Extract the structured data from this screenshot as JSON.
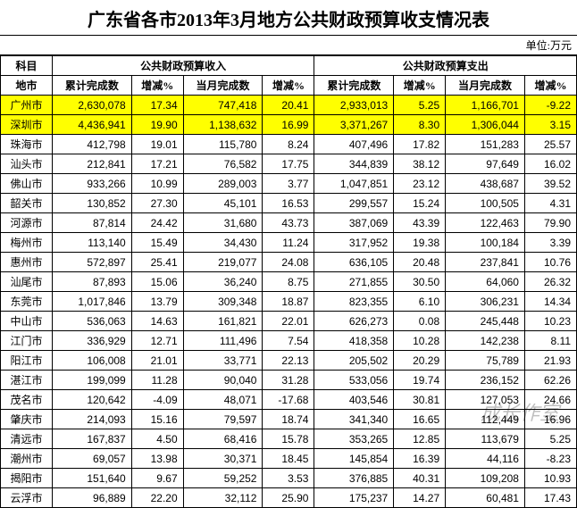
{
  "title": "广东省各市2013年3月地方公共财政预算收支情况表",
  "unit": "单位:万元",
  "headers": {
    "subject": "科目",
    "city": "地市",
    "income_group": "公共财政预算收入",
    "expense_group": "公共财政预算支出",
    "cum_total": "累计完成数",
    "pct1": "增减%",
    "month_total": "当月完成数",
    "pct2": "增减%",
    "cum_total2": "累计完成数",
    "pct3": "增减%",
    "month_total2": "当月完成数",
    "pct4": "增减%"
  },
  "highlight_color": "#ffff00",
  "rows": [
    {
      "city": "广州市",
      "hl": true,
      "v": [
        "2,630,078",
        "17.34",
        "747,418",
        "20.41",
        "2,933,013",
        "5.25",
        "1,166,701",
        "-9.22"
      ]
    },
    {
      "city": "深圳市",
      "hl": true,
      "v": [
        "4,436,941",
        "19.90",
        "1,138,632",
        "16.99",
        "3,371,267",
        "8.30",
        "1,306,044",
        "3.15"
      ]
    },
    {
      "city": "珠海市",
      "hl": false,
      "v": [
        "412,798",
        "19.01",
        "115,780",
        "8.24",
        "407,496",
        "17.82",
        "151,283",
        "25.57"
      ]
    },
    {
      "city": "汕头市",
      "hl": false,
      "v": [
        "212,841",
        "17.21",
        "76,582",
        "17.75",
        "344,839",
        "38.12",
        "97,649",
        "16.02"
      ]
    },
    {
      "city": "佛山市",
      "hl": false,
      "v": [
        "933,266",
        "10.99",
        "289,003",
        "3.77",
        "1,047,851",
        "23.12",
        "438,687",
        "39.52"
      ]
    },
    {
      "city": "韶关市",
      "hl": false,
      "v": [
        "130,852",
        "27.30",
        "45,101",
        "16.53",
        "299,557",
        "15.24",
        "100,505",
        "4.31"
      ]
    },
    {
      "city": "河源市",
      "hl": false,
      "v": [
        "87,814",
        "24.42",
        "31,680",
        "43.73",
        "387,069",
        "43.39",
        "122,463",
        "79.90"
      ]
    },
    {
      "city": "梅州市",
      "hl": false,
      "v": [
        "113,140",
        "15.49",
        "34,430",
        "11.24",
        "317,952",
        "19.38",
        "100,184",
        "3.39"
      ]
    },
    {
      "city": "惠州市",
      "hl": false,
      "v": [
        "572,897",
        "25.41",
        "219,077",
        "24.08",
        "636,105",
        "20.48",
        "237,841",
        "10.76"
      ]
    },
    {
      "city": "汕尾市",
      "hl": false,
      "v": [
        "87,893",
        "15.06",
        "36,240",
        "8.75",
        "271,855",
        "30.50",
        "64,060",
        "26.32"
      ]
    },
    {
      "city": "东莞市",
      "hl": false,
      "v": [
        "1,017,846",
        "13.79",
        "309,348",
        "18.87",
        "823,355",
        "6.10",
        "306,231",
        "14.34"
      ]
    },
    {
      "city": "中山市",
      "hl": false,
      "v": [
        "536,063",
        "14.63",
        "161,821",
        "22.01",
        "626,273",
        "0.08",
        "245,448",
        "10.23"
      ]
    },
    {
      "city": "江门市",
      "hl": false,
      "v": [
        "336,929",
        "12.71",
        "111,496",
        "7.54",
        "418,358",
        "10.28",
        "142,238",
        "8.11"
      ]
    },
    {
      "city": "阳江市",
      "hl": false,
      "v": [
        "106,008",
        "21.01",
        "33,771",
        "22.13",
        "205,502",
        "20.29",
        "75,789",
        "21.93"
      ]
    },
    {
      "city": "湛江市",
      "hl": false,
      "v": [
        "199,099",
        "11.28",
        "90,040",
        "31.28",
        "533,056",
        "19.74",
        "236,152",
        "62.26"
      ]
    },
    {
      "city": "茂名市",
      "hl": false,
      "v": [
        "120,642",
        "-4.09",
        "48,071",
        "-17.68",
        "403,546",
        "30.81",
        "127,053",
        "24.66"
      ]
    },
    {
      "city": "肇庆市",
      "hl": false,
      "v": [
        "214,093",
        "15.16",
        "79,597",
        "18.74",
        "341,340",
        "16.65",
        "112,449",
        "16.96"
      ]
    },
    {
      "city": "清远市",
      "hl": false,
      "v": [
        "167,837",
        "4.50",
        "68,416",
        "15.78",
        "353,265",
        "12.85",
        "113,679",
        "5.25"
      ]
    },
    {
      "city": "潮州市",
      "hl": false,
      "v": [
        "69,057",
        "13.98",
        "30,371",
        "18.45",
        "145,854",
        "16.39",
        "44,116",
        "-8.23"
      ]
    },
    {
      "city": "揭阳市",
      "hl": false,
      "v": [
        "151,640",
        "9.67",
        "59,252",
        "3.53",
        "376,885",
        "40.31",
        "109,208",
        "10.93"
      ]
    },
    {
      "city": "云浮市",
      "hl": false,
      "v": [
        "96,889",
        "22.20",
        "32,112",
        "25.90",
        "175,237",
        "14.27",
        "60,481",
        "17.43"
      ]
    }
  ],
  "watermark": "成长作室"
}
